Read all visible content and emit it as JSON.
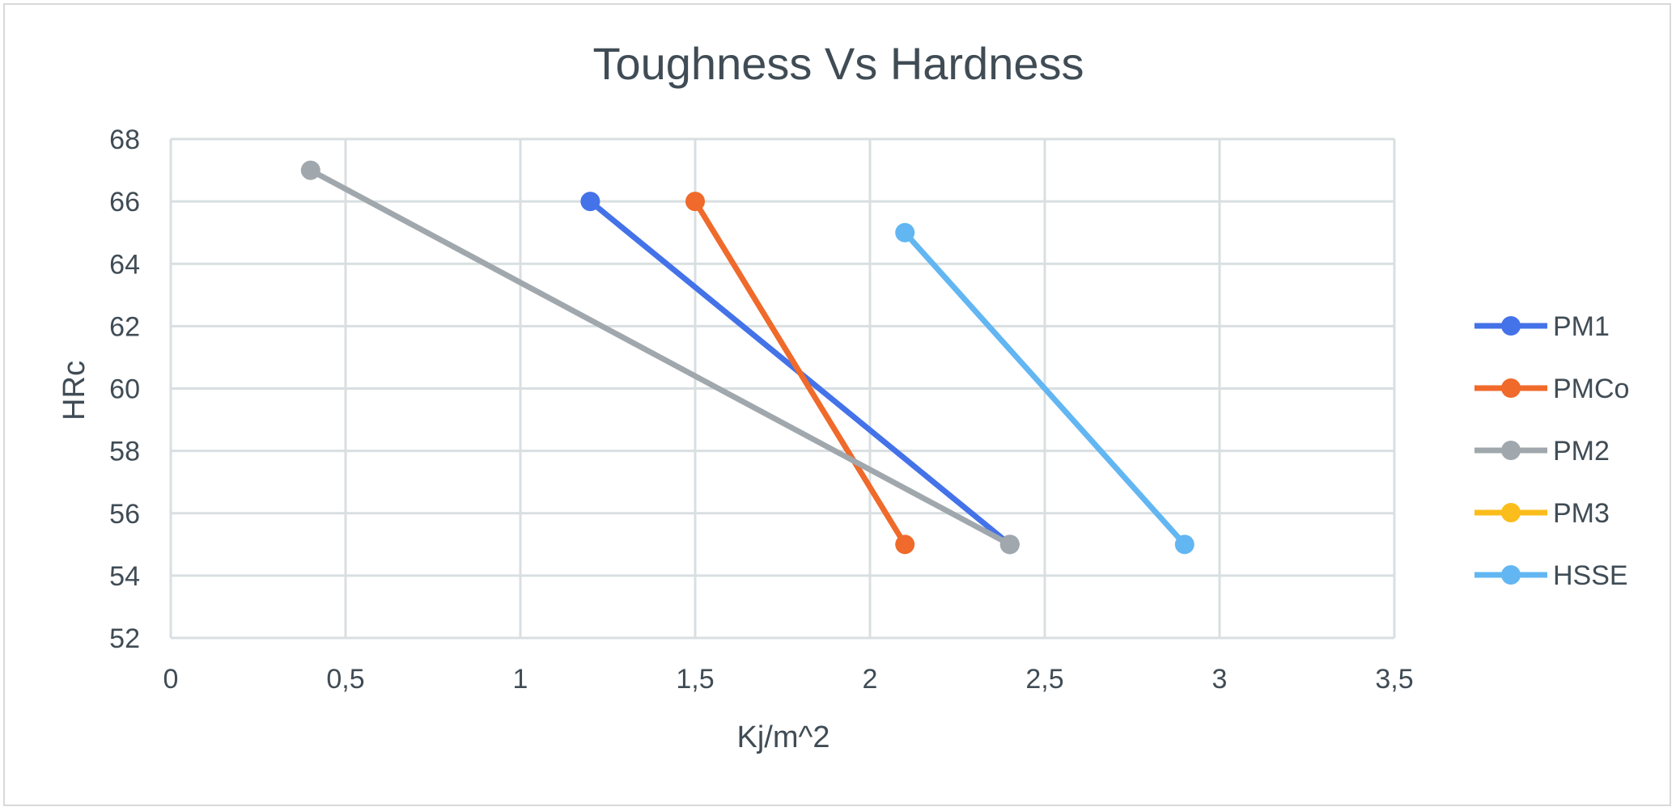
{
  "chart_data": {
    "type": "scatter",
    "title": "Toughness Vs Hardness",
    "xlabel": "Kj/m^2",
    "ylabel": "HRc",
    "xlim": [
      0,
      3.5
    ],
    "ylim": [
      52,
      68
    ],
    "x_ticks": [
      "0",
      "0,5",
      "1",
      "1,5",
      "2",
      "2,5",
      "3",
      "3,5"
    ],
    "y_ticks": [
      "52",
      "54",
      "56",
      "58",
      "60",
      "62",
      "64",
      "66",
      "68"
    ],
    "grid": true,
    "legend_position": "right",
    "series": [
      {
        "name": "PM1",
        "color": "#4472e8",
        "points": [
          [
            1.2,
            66
          ],
          [
            2.4,
            55
          ]
        ]
      },
      {
        "name": "PMCo",
        "color": "#ef6a2b",
        "points": [
          [
            1.5,
            66
          ],
          [
            2.1,
            55
          ]
        ]
      },
      {
        "name": "PM2",
        "color": "#a0a8ad",
        "points": [
          [
            0.4,
            67
          ],
          [
            2.4,
            55
          ]
        ]
      },
      {
        "name": "PM3",
        "color": "#fbbd1c",
        "points": []
      },
      {
        "name": "HSSE",
        "color": "#62b6f2",
        "points": [
          [
            2.1,
            65
          ],
          [
            2.9,
            55
          ]
        ]
      }
    ]
  }
}
